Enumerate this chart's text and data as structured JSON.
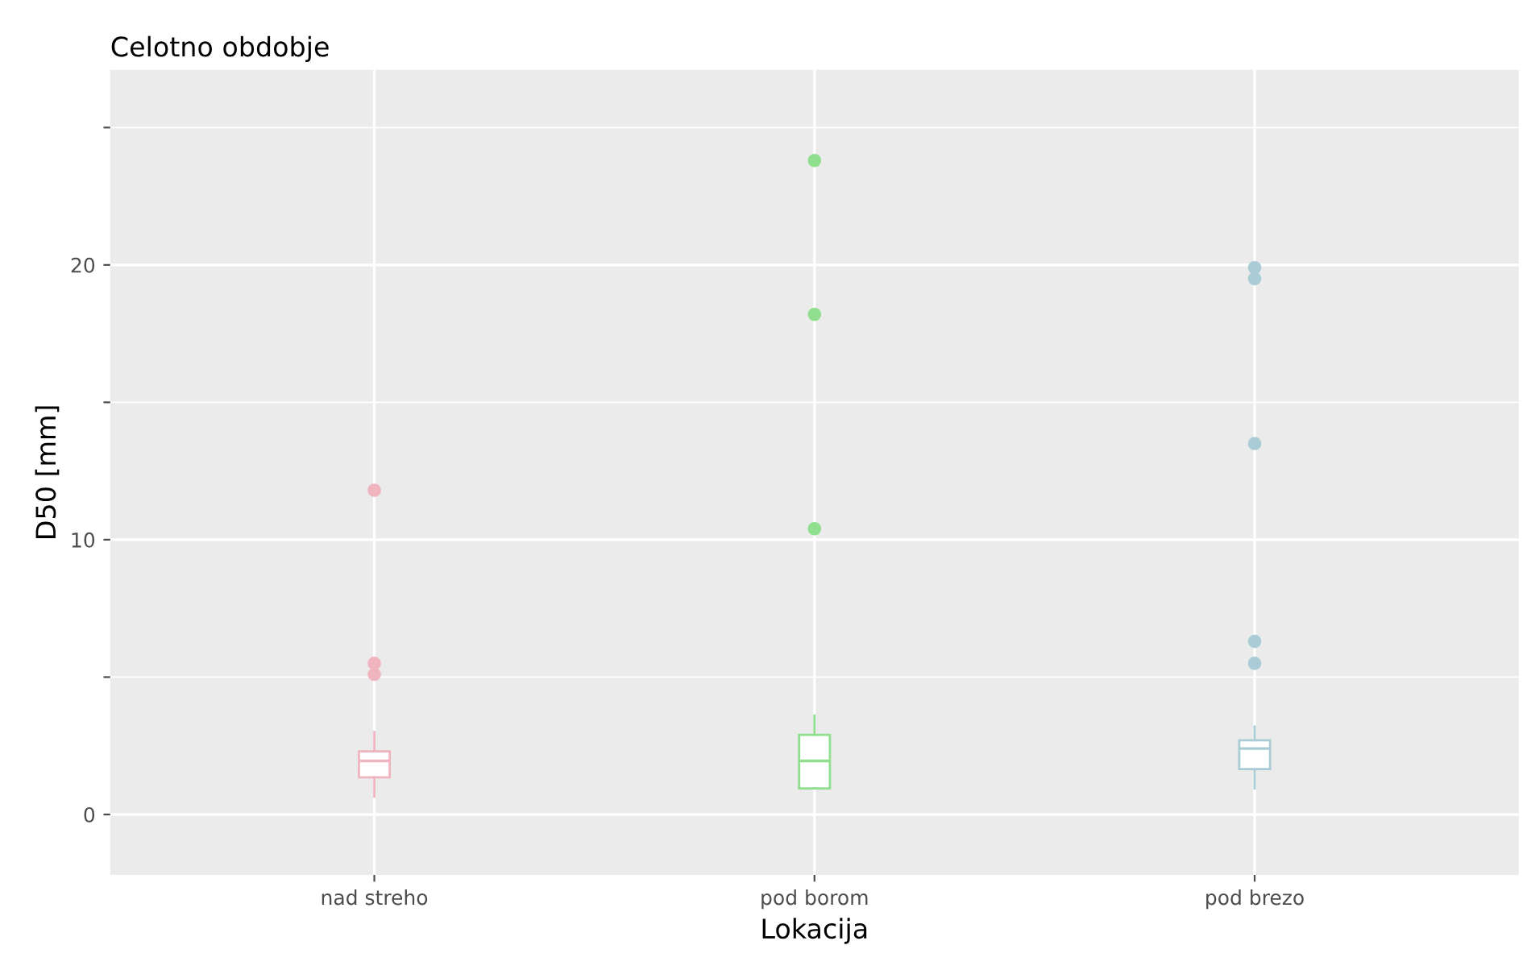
{
  "chart_data": {
    "type": "box",
    "title": "Celotno obdobje",
    "xlabel": "Lokacija",
    "ylabel": "D50 [mm]",
    "categories": [
      "nad streho",
      "pod borom",
      "pod brezo"
    ],
    "colors": [
      "#f0b4bf",
      "#8fdf8f",
      "#a9ccd6"
    ],
    "boxes": [
      {
        "low": 0.65,
        "q1": 1.35,
        "median": 1.95,
        "q3": 2.3,
        "high": 3.0,
        "outliers": [
          5.1,
          5.5,
          11.8
        ]
      },
      {
        "low": 0.95,
        "q1": 0.95,
        "median": 1.95,
        "q3": 2.9,
        "high": 3.6,
        "outliers": [
          10.4,
          18.2,
          23.8
        ]
      },
      {
        "low": 0.95,
        "q1": 1.65,
        "median": 2.4,
        "q3": 2.7,
        "high": 3.2,
        "outliers": [
          5.5,
          6.3,
          13.5,
          19.5,
          19.9
        ]
      }
    ],
    "ylim": [
      -2.2,
      27.1
    ],
    "yticks": [
      0,
      {
        "value": 5,
        "label": null
      },
      10,
      {
        "value": 15,
        "label": null
      },
      20,
      {
        "value": 25,
        "label": null
      }
    ],
    "grid": true
  }
}
